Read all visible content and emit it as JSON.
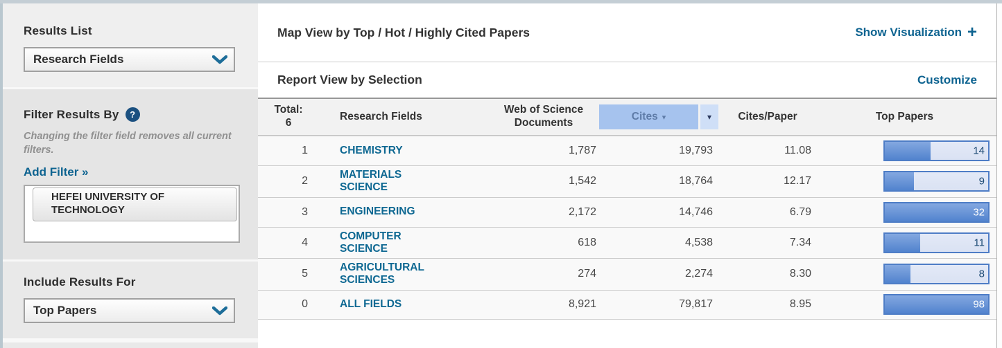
{
  "sidebar": {
    "results_list": {
      "label": "Results List",
      "selected": "Research Fields"
    },
    "filter": {
      "label": "Filter Results By",
      "help_icon": "?",
      "note": "Changing the filter field removes all current filters.",
      "add_filter_label": "Add Filter »",
      "filters": [
        {
          "name": "HEFEI UNIVERSITY OF TECHNOLOGY"
        }
      ]
    },
    "include_results": {
      "label": "Include Results For",
      "selected": "Top Papers"
    }
  },
  "main": {
    "map_view": {
      "title": "Map View by Top / Hot / Highly Cited Papers",
      "action": "Show Visualization",
      "action_icon": "+"
    },
    "report_view": {
      "title": "Report View by Selection",
      "action": "Customize"
    },
    "table": {
      "total_label": "Total:",
      "total_value": "6",
      "col_fields": "Research Fields",
      "col_docs": "Web of Science Documents",
      "col_cites": "Cites",
      "col_cites_caret": "▾",
      "col_cpp": "Cites/Paper",
      "col_top": "Top Papers",
      "sorted_by": "Cites",
      "rows": [
        {
          "rank": "1",
          "field": "CHEMISTRY",
          "documents": "1,787",
          "cites": "19,793",
          "cites_per_paper": "11.08",
          "top_papers": "14",
          "bar_pct": 44
        },
        {
          "rank": "2",
          "field": "MATERIALS SCIENCE",
          "documents": "1,542",
          "cites": "18,764",
          "cites_per_paper": "12.17",
          "top_papers": "9",
          "bar_pct": 28
        },
        {
          "rank": "3",
          "field": "ENGINEERING",
          "documents": "2,172",
          "cites": "14,746",
          "cites_per_paper": "6.79",
          "top_papers": "32",
          "bar_pct": 100
        },
        {
          "rank": "4",
          "field": "COMPUTER SCIENCE",
          "documents": "618",
          "cites": "4,538",
          "cites_per_paper": "7.34",
          "top_papers": "11",
          "bar_pct": 34
        },
        {
          "rank": "5",
          "field": "AGRICULTURAL SCIENCES",
          "documents": "274",
          "cites": "2,274",
          "cites_per_paper": "8.30",
          "top_papers": "8",
          "bar_pct": 25
        },
        {
          "rank": "0",
          "field": "ALL FIELDS",
          "documents": "8,921",
          "cites": "79,817",
          "cites_per_paper": "8.95",
          "top_papers": "98",
          "bar_pct": 100
        }
      ]
    }
  },
  "colors": {
    "link_teal": "#0d6390",
    "bar_blue": "#5183ce",
    "bar_border": "#4e7dc6",
    "sort_highlight": "#a6c3ee",
    "accent_strip": "#b9c7cf"
  }
}
